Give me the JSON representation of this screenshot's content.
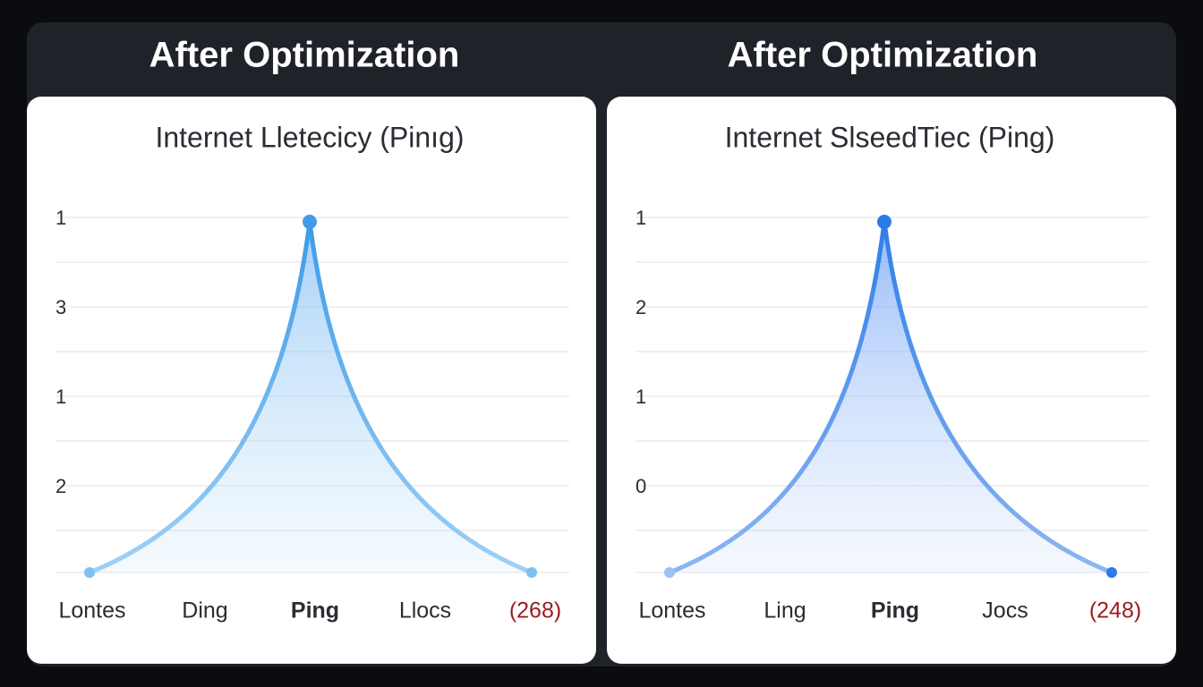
{
  "panels": [
    {
      "header": "After Optimization",
      "title": "Internet Lletecicy (Pinıg)",
      "y_labels": [
        "1",
        "3",
        "1",
        "2"
      ],
      "x_labels": [
        "Lontes",
        "Ding",
        "Ping",
        "Llocs",
        "(268)"
      ]
    },
    {
      "header": "After Optimization",
      "title": "Internet SlseedTiec (Ping)",
      "y_labels": [
        "1",
        "2",
        "1",
        "0"
      ],
      "x_labels": [
        "Lontes",
        "Ling",
        "Ping",
        "Jocs",
        "(248)"
      ]
    }
  ]
}
